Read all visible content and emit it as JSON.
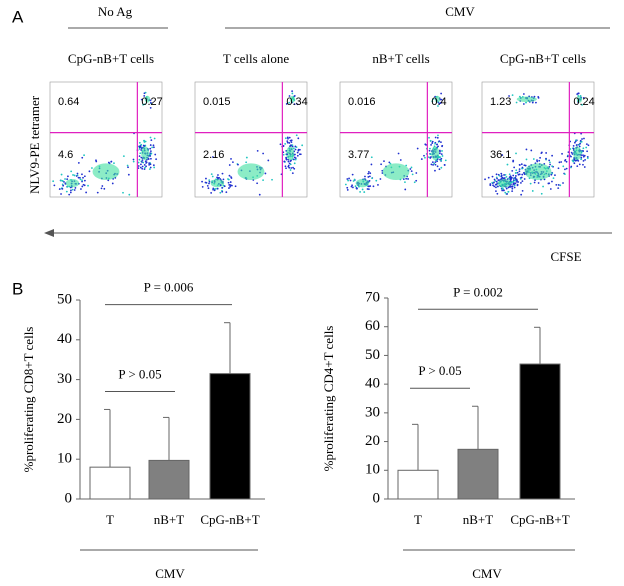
{
  "panel_labels": [
    "A",
    "B"
  ],
  "panel_a": {
    "group_labels": [
      "No Ag",
      "CMV"
    ],
    "y_label": "NLV9-PE tetramer",
    "x_label": "CFSE",
    "plots": [
      {
        "title": "CpG-nB+T cells",
        "quadrants": [
          0.64,
          0.27,
          4.6
        ]
      },
      {
        "title": "T cells alone",
        "quadrants": [
          0.015,
          0.34,
          2.16
        ]
      },
      {
        "title": "nB+T cells",
        "quadrants": [
          0.016,
          0.4,
          3.77
        ]
      },
      {
        "title": "CpG-nB+T cells",
        "quadrants": [
          1.23,
          0.24,
          36.1
        ]
      }
    ]
  },
  "chart_data": [
    {
      "type": "bar",
      "ylabel": "%proliferating CD8+T  cells",
      "categories": [
        "T",
        "nB+T",
        "CpG-nB+T"
      ],
      "values": [
        8,
        9.7,
        31.5
      ],
      "errors": [
        14.5,
        10.8,
        12.8
      ],
      "colors": [
        "#ffffff",
        "#808080",
        "#000000"
      ],
      "ylim": [
        0,
        50
      ],
      "yticks": [
        0,
        10,
        20,
        30,
        40,
        50
      ],
      "annotations": [
        "P > 0.05",
        "P = 0.006"
      ],
      "group_label": "CMV"
    },
    {
      "type": "bar",
      "ylabel": "%proliferating CD4+T  cells",
      "categories": [
        "T",
        "nB+T",
        "CpG-nB+T"
      ],
      "values": [
        10,
        17.3,
        47
      ],
      "errors": [
        16,
        15,
        12.8
      ],
      "colors": [
        "#ffffff",
        "#808080",
        "#000000"
      ],
      "ylim": [
        0,
        70
      ],
      "yticks": [
        0,
        10,
        20,
        30,
        40,
        50,
        60,
        70
      ],
      "annotations": [
        "P > 0.05",
        "P = 0.002"
      ],
      "group_label": "CMV"
    }
  ]
}
